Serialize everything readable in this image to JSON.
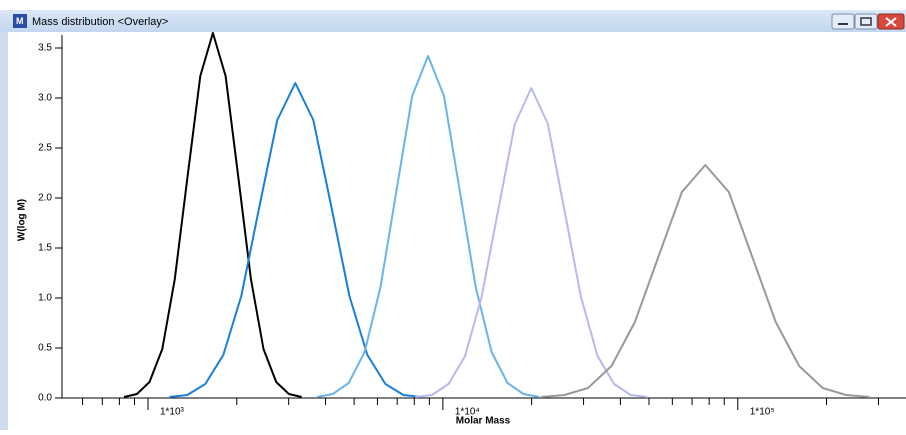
{
  "window": {
    "title": "Mass distribution <Overlay>"
  },
  "chart_data": {
    "type": "line",
    "xlabel": "Molar Mass",
    "ylabel": "W(log M)",
    "xscale": "log",
    "xlim": [
      511,
      372000
    ],
    "ylim": [
      0,
      3.63
    ],
    "xticks": [
      {
        "value": 1000,
        "label": "1*10³"
      },
      {
        "value": 10000,
        "label": "1*10⁴"
      },
      {
        "value": 100000,
        "label": "1*10⁵"
      }
    ],
    "xminorticks": [
      600,
      700,
      800,
      900,
      2000,
      3000,
      4000,
      5000,
      6000,
      7000,
      8000,
      9000,
      20000,
      30000,
      40000,
      50000,
      60000,
      70000,
      80000,
      90000,
      200000,
      300000
    ],
    "yticks": [
      {
        "value": 0,
        "label": "0.0"
      },
      0.5,
      {
        "value": 1,
        "label": "1.0"
      },
      1.5,
      {
        "value": 2,
        "label": "2.0"
      },
      2.5,
      {
        "value": 3,
        "label": "3.0"
      },
      3.5
    ],
    "series": [
      {
        "color": "#000000",
        "x": [
          830,
          917,
          1012,
          1118,
          1233,
          1362,
          1504,
          1660,
          1833,
          2024,
          2234,
          2465,
          2722,
          3005,
          3318
        ],
        "values": [
          0.01,
          0.04,
          0.16,
          0.49,
          1.19,
          2.21,
          3.22,
          3.65,
          3.22,
          2.21,
          1.19,
          0.49,
          0.16,
          0.04,
          0.01
        ]
      },
      {
        "color": "#1a7fd6",
        "x": [
          1181,
          1359,
          1564,
          1801,
          2072,
          2385,
          2745,
          3160,
          3637,
          4187,
          4819,
          5546,
          6383,
          7347,
          8456
        ],
        "values": [
          0.01,
          0.03,
          0.14,
          0.43,
          1.02,
          1.91,
          2.78,
          3.15,
          2.78,
          1.91,
          1.02,
          0.43,
          0.14,
          0.03,
          0.01
        ]
      },
      {
        "color": "#6ab4ea",
        "x": [
          3741,
          4235,
          4793,
          5426,
          6145,
          6956,
          7871,
          8910,
          10086,
          11414,
          12920,
          14630,
          16564,
          18747,
          21223
        ],
        "values": [
          0.01,
          0.04,
          0.15,
          0.46,
          1.11,
          2.07,
          3.02,
          3.42,
          3.02,
          2.07,
          1.11,
          0.46,
          0.15,
          0.04,
          0.01
        ]
      },
      {
        "color": "#b8b8ef",
        "x": [
          8070,
          9185,
          10451,
          11896,
          13535,
          15405,
          17531,
          19950,
          22703,
          25835,
          29406,
          33456,
          38084,
          43331,
          49316
        ],
        "values": [
          0.01,
          0.03,
          0.14,
          0.42,
          1.01,
          1.88,
          2.74,
          3.1,
          2.74,
          1.88,
          1.01,
          0.42,
          0.14,
          0.03,
          0.01
        ]
      },
      {
        "color": "#999999",
        "x": [
          21525,
          25856,
          31048,
          37300,
          44790,
          53791,
          64630,
          77620,
          93222,
          112006,
          134514,
          161527,
          194050,
          233015,
          279898
        ],
        "values": [
          0.01,
          0.03,
          0.1,
          0.32,
          0.76,
          1.41,
          2.06,
          2.33,
          2.06,
          1.41,
          0.76,
          0.32,
          0.1,
          0.03,
          0.01
        ]
      }
    ]
  }
}
